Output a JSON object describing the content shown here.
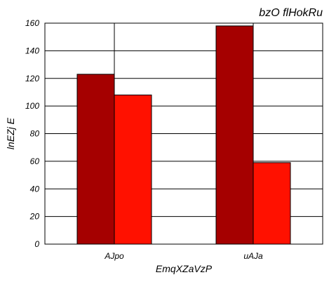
{
  "chart_data": {
    "type": "bar",
    "title": "bzO flHokRu",
    "xlabel": "EmqXZaVzP",
    "ylabel": "lnEZj E",
    "categories": [
      "AJpo",
      "uAJa"
    ],
    "series": [
      {
        "values": [
          123,
          158
        ],
        "color": "#a50000"
      },
      {
        "values": [
          108,
          59
        ],
        "color": "#ff1100"
      }
    ],
    "ylim": [
      0,
      160
    ],
    "yticks": [
      0,
      20,
      40,
      60,
      80,
      100,
      120,
      140,
      160
    ],
    "grid": true,
    "legend": "none"
  }
}
